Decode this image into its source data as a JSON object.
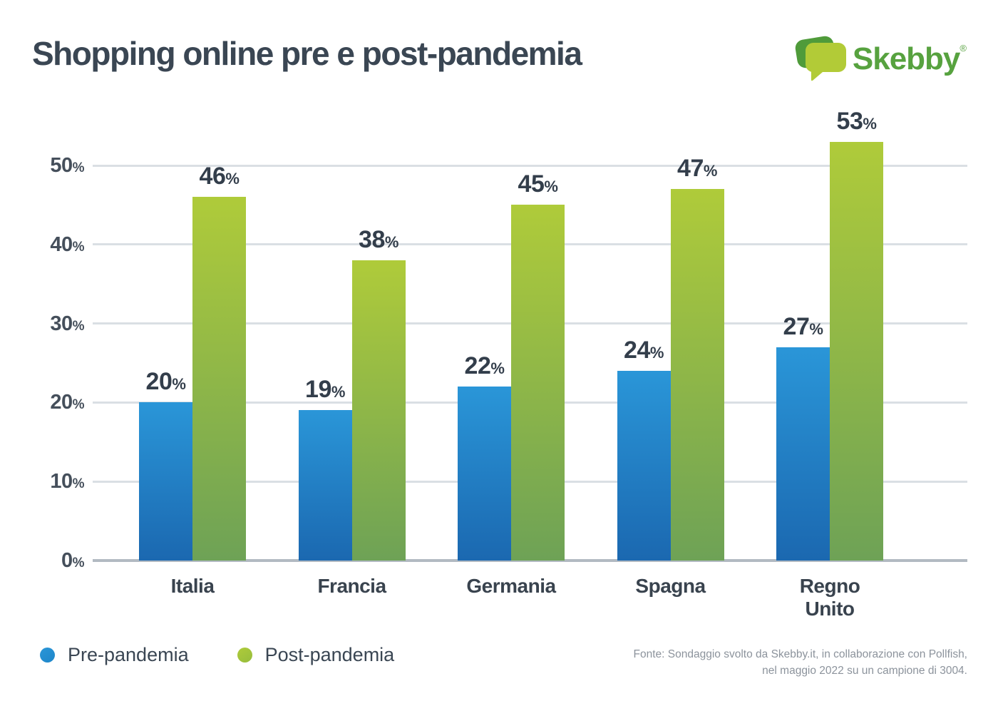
{
  "title": "Shopping online pre e post-pandemia",
  "logo": {
    "text": "Skebby",
    "registered": "®",
    "icon": "speech-bubbles-icon",
    "text_color": "#57A23F",
    "bubble_back_color": "#4F9B3A",
    "bubble_front_color": "#B2CB37"
  },
  "chart_data": {
    "type": "bar",
    "categories": [
      "Italia",
      "Francia",
      "Germania",
      "Spagna",
      "Regno Unito"
    ],
    "series": [
      {
        "name": "Pre-pandemia",
        "values": [
          20,
          19,
          22,
          24,
          27
        ],
        "color_top": "#2A96D8",
        "color_bottom": "#1B68B0",
        "legend_color": "#1E86C9"
      },
      {
        "name": "Post-pandemia",
        "values": [
          46,
          38,
          45,
          47,
          53
        ],
        "color_top": "#AFCB3A",
        "color_bottom": "#6EA256",
        "legend_color": "#96BD3D"
      }
    ],
    "unit": "%",
    "title": "Shopping online pre e post-pandemia",
    "xlabel": "",
    "ylabel": "",
    "y_ticks": [
      0,
      10,
      20,
      30,
      40,
      50
    ],
    "ylim": [
      0,
      55
    ],
    "grid": "horizontal",
    "gridline_color": "#DADFE4",
    "baseline_color": "#B2BAC2",
    "legend_position": "bottom-left",
    "value_labels": "above-bars"
  },
  "footer": {
    "line1": "Fonte: Sondaggio svolto da Skebby.it, in collaborazione con Pollfish,",
    "line2": "nel maggio 2022 su un campione di 3004."
  }
}
